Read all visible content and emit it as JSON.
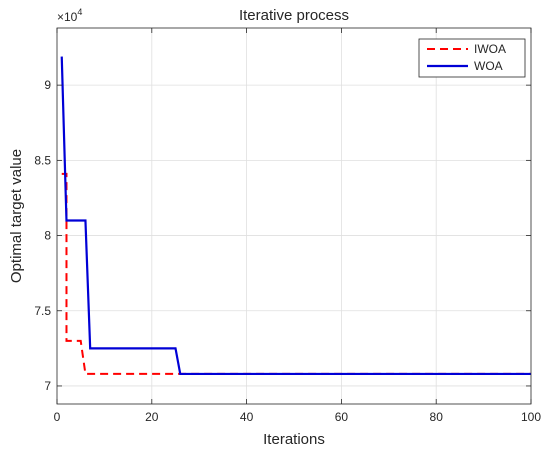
{
  "chart_data": {
    "type": "line",
    "title": "Iterative process",
    "xlabel": "Iterations",
    "ylabel": "Optimal target value",
    "exponent_base": "×10",
    "exponent_power": "4",
    "xlim": [
      0,
      100
    ],
    "ylim": [
      6.88,
      9.38
    ],
    "xticks": [
      0,
      20,
      40,
      60,
      80,
      100
    ],
    "yticks": [
      7,
      7.5,
      8,
      8.5,
      9
    ],
    "ytick_labels": [
      "7",
      "7.5",
      "8",
      "8.5",
      "9"
    ],
    "grid": true,
    "legend_position": "top-right",
    "series": [
      {
        "name": "IWOA",
        "color": "#ff0000",
        "style": "dashed",
        "x": [
          1,
          2,
          2,
          5,
          6,
          6,
          100
        ],
        "y": [
          8.41,
          8.41,
          7.3,
          7.3,
          7.08,
          7.08,
          7.08
        ]
      },
      {
        "name": "WOA",
        "color": "#0000d6",
        "style": "solid",
        "x": [
          1,
          2,
          2,
          6,
          7,
          7,
          25,
          26,
          26,
          100
        ],
        "y": [
          9.19,
          8.1,
          8.1,
          8.1,
          7.25,
          7.25,
          7.25,
          7.08,
          7.08,
          7.08
        ]
      }
    ]
  }
}
